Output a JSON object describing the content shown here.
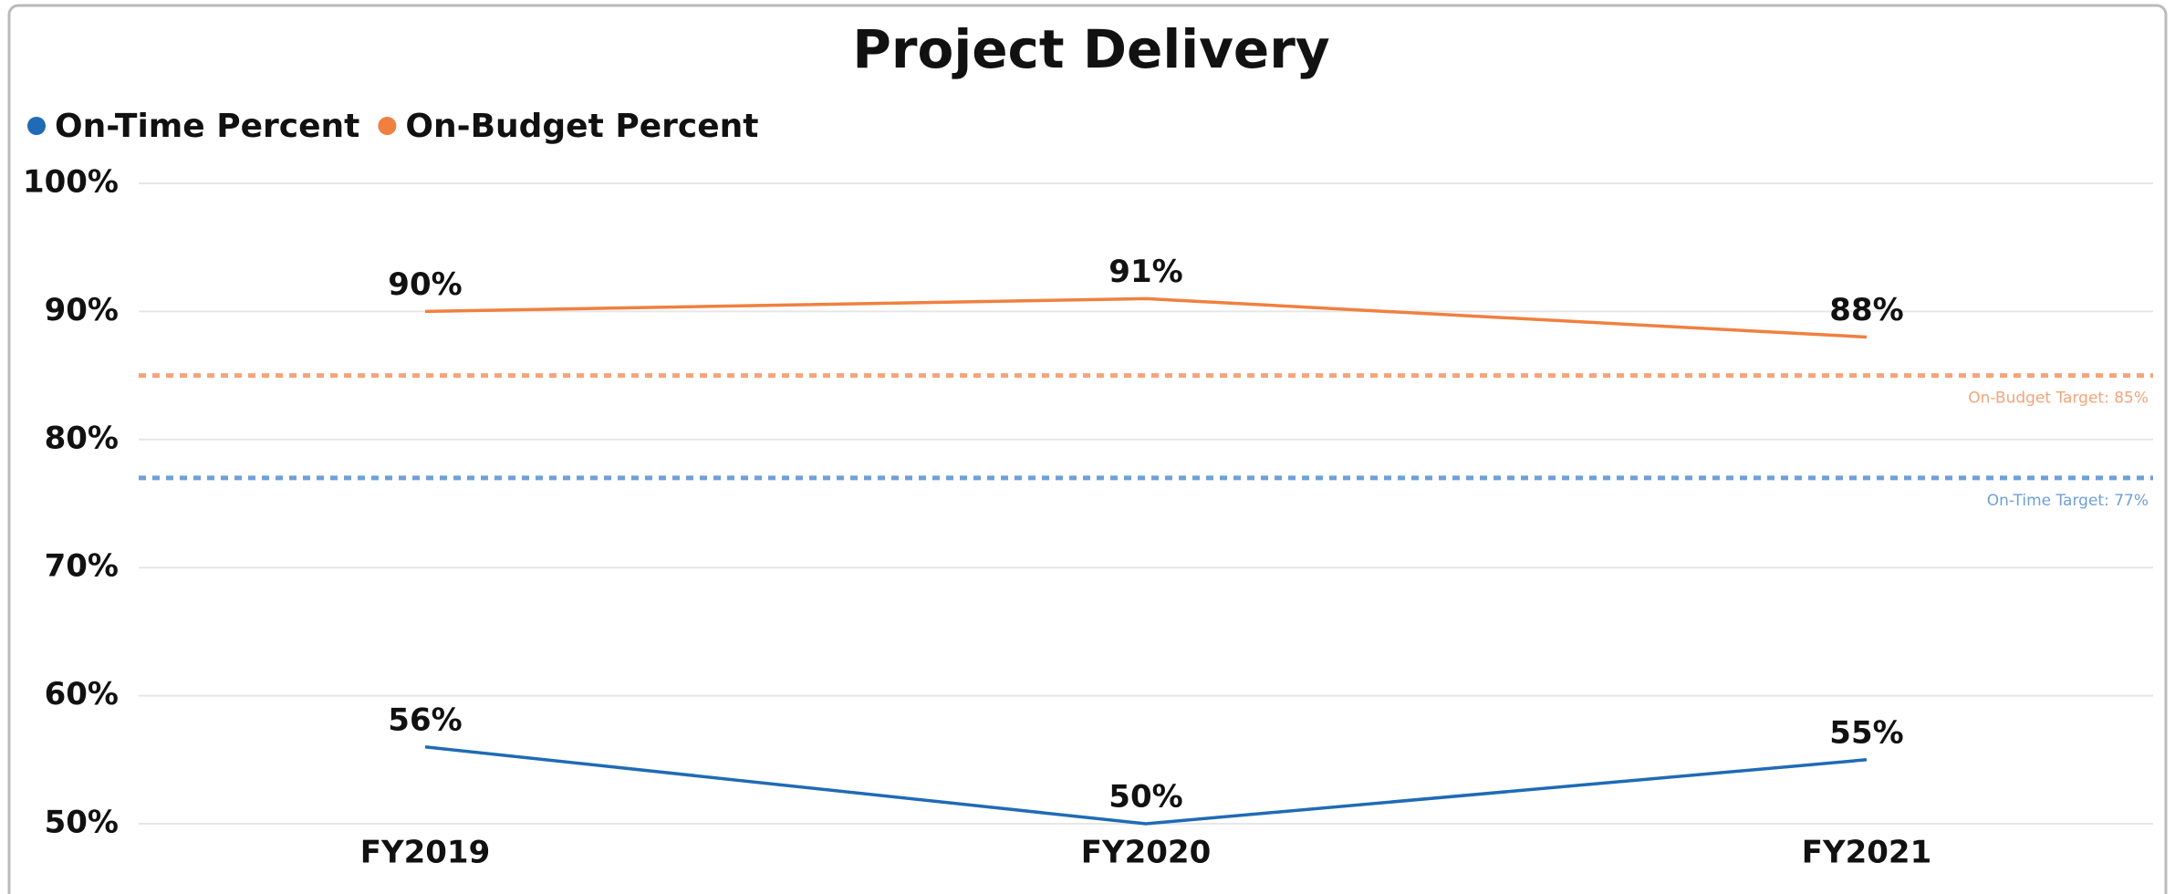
{
  "chart_data": {
    "type": "line",
    "title": "Project Delivery",
    "categories": [
      "FY2019",
      "FY2020",
      "FY2021"
    ],
    "series": [
      {
        "name": "On-Time Percent",
        "color": "#1f6bb5",
        "values": [
          56,
          50,
          55
        ],
        "value_labels": [
          "56%",
          "50%",
          "55%"
        ]
      },
      {
        "name": "On-Budget Percent",
        "color": "#f08040",
        "values": [
          90,
          91,
          88
        ],
        "value_labels": [
          "90%",
          "91%",
          "88%"
        ]
      }
    ],
    "reference_lines": [
      {
        "label": "On-Budget Target: 85%",
        "value": 85,
        "color": "#f4a47a"
      },
      {
        "label": "On-Time Target: 77%",
        "value": 77,
        "color": "#6fa0d8"
      }
    ],
    "ylim": [
      50,
      100
    ],
    "yticks": [
      {
        "value": 50,
        "label": "50%"
      },
      {
        "value": 60,
        "label": "60%"
      },
      {
        "value": 70,
        "label": "70%"
      },
      {
        "value": 80,
        "label": "80%"
      },
      {
        "value": 90,
        "label": "90%"
      },
      {
        "value": 100,
        "label": "100%"
      }
    ],
    "grid": true,
    "legend": "top-left"
  }
}
